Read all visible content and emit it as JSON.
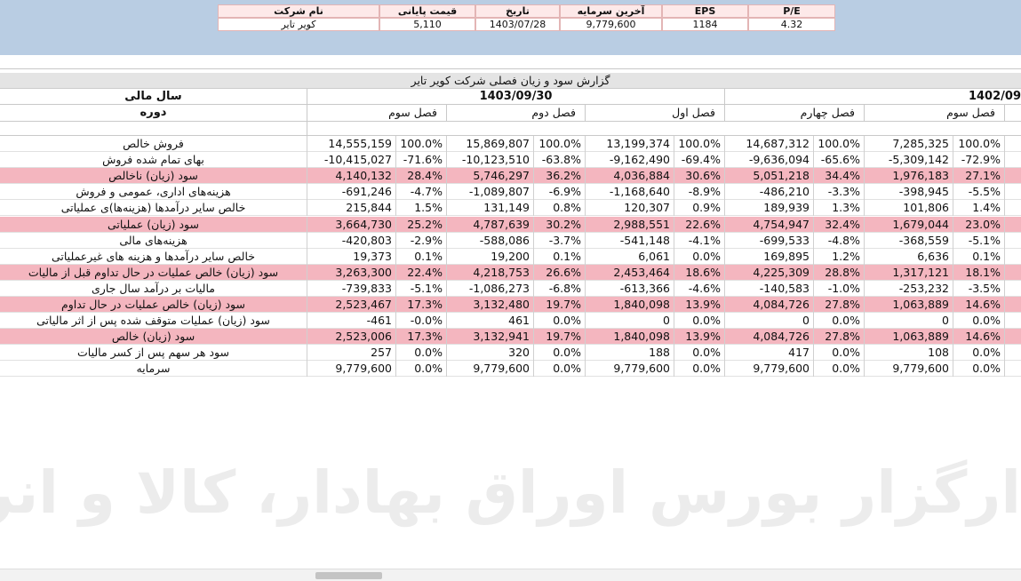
{
  "info": {
    "headers": [
      "نام شرکت",
      "قیمت پایانی",
      "تاریخ",
      "آخرین سرمایه",
      "EPS",
      "P/E"
    ],
    "values": [
      "کویر تایر",
      "5,110",
      "1403/07/28",
      "9,779,600",
      "1184",
      "4.32"
    ]
  },
  "report": {
    "title": "گزارش سود و زیان فصلی شرکت کویر تایر",
    "fiscal_year_label": "سال مالی",
    "period_label": "دوره",
    "years": [
      "1403/09/30",
      "1402/09"
    ],
    "periods": [
      "فصل سوم",
      "فصل دوم",
      "فصل اول",
      "فصل چهارم",
      "فصل سوم"
    ],
    "rows": [
      {
        "label": "فروش خالص",
        "highlight": false,
        "cells": [
          "14,555,159",
          "100.0%",
          "15,869,807",
          "100.0%",
          "13,199,374",
          "100.0%",
          "14,687,312",
          "100.0%",
          "7,285,325",
          "100.0%"
        ]
      },
      {
        "label": "بهای تمام شده فروش",
        "highlight": false,
        "cells": [
          "-10,415,027",
          "-71.6%",
          "-10,123,510",
          "-63.8%",
          "-9,162,490",
          "-69.4%",
          "-9,636,094",
          "-65.6%",
          "-5,309,142",
          "-72.9%"
        ]
      },
      {
        "label": "سود (زیان) ناخالص",
        "highlight": true,
        "cells": [
          "4,140,132",
          "28.4%",
          "5,746,297",
          "36.2%",
          "4,036,884",
          "30.6%",
          "5,051,218",
          "34.4%",
          "1,976,183",
          "27.1%"
        ]
      },
      {
        "label": "هزینه‌های اداری، عمومی و فروش",
        "highlight": false,
        "cells": [
          "-691,246",
          "-4.7%",
          "-1,089,807",
          "-6.9%",
          "-1,168,640",
          "-8.9%",
          "-486,210",
          "-3.3%",
          "-398,945",
          "-5.5%"
        ]
      },
      {
        "label": "خالص سایر درآمدها (هزینه‌ها)ی عملیاتی",
        "highlight": false,
        "cells": [
          "215,844",
          "1.5%",
          "131,149",
          "0.8%",
          "120,307",
          "0.9%",
          "189,939",
          "1.3%",
          "101,806",
          "1.4%"
        ]
      },
      {
        "label": "سود (زیان) عملیاتی",
        "highlight": true,
        "cells": [
          "3,664,730",
          "25.2%",
          "4,787,639",
          "30.2%",
          "2,988,551",
          "22.6%",
          "4,754,947",
          "32.4%",
          "1,679,044",
          "23.0%"
        ]
      },
      {
        "label": "هزینه‌های مالی",
        "highlight": false,
        "cells": [
          "-420,803",
          "-2.9%",
          "-588,086",
          "-3.7%",
          "-541,148",
          "-4.1%",
          "-699,533",
          "-4.8%",
          "-368,559",
          "-5.1%"
        ]
      },
      {
        "label": "خالص سایر درآمدها و هزینه های غیرعملیاتی",
        "highlight": false,
        "cells": [
          "19,373",
          "0.1%",
          "19,200",
          "0.1%",
          "6,061",
          "0.0%",
          "169,895",
          "1.2%",
          "6,636",
          "0.1%"
        ]
      },
      {
        "label": "سود (زیان) خالص عملیات در حال تداوم قبل از مالیات",
        "highlight": true,
        "cells": [
          "3,263,300",
          "22.4%",
          "4,218,753",
          "26.6%",
          "2,453,464",
          "18.6%",
          "4,225,309",
          "28.8%",
          "1,317,121",
          "18.1%"
        ]
      },
      {
        "label": "مالیات بر درآمد سال جاری",
        "highlight": false,
        "cells": [
          "-739,833",
          "-5.1%",
          "-1,086,273",
          "-6.8%",
          "-613,366",
          "-4.6%",
          "-140,583",
          "-1.0%",
          "-253,232",
          "-3.5%"
        ]
      },
      {
        "label": "سود (زیان) خالص عملیات در حال تداوم",
        "highlight": true,
        "cells": [
          "2,523,467",
          "17.3%",
          "3,132,480",
          "19.7%",
          "1,840,098",
          "13.9%",
          "4,084,726",
          "27.8%",
          "1,063,889",
          "14.6%"
        ]
      },
      {
        "label": "سود (زیان) عملیات متوقف شده پس از اثر مالیاتی",
        "highlight": false,
        "cells": [
          "-461",
          "-0.0%",
          "461",
          "0.0%",
          "0",
          "0.0%",
          "0",
          "0.0%",
          "0",
          "0.0%"
        ]
      },
      {
        "label": "سود (زیان) خالص",
        "highlight": true,
        "cells": [
          "2,523,006",
          "17.3%",
          "3,132,941",
          "19.7%",
          "1,840,098",
          "13.9%",
          "4,084,726",
          "27.8%",
          "1,063,889",
          "14.6%"
        ]
      },
      {
        "label": "سود هر سهم پس از کسر مالیات",
        "highlight": false,
        "cells": [
          "257",
          "0.0%",
          "320",
          "0.0%",
          "188",
          "0.0%",
          "417",
          "0.0%",
          "108",
          "0.0%"
        ]
      },
      {
        "label": "سرمایه",
        "highlight": false,
        "cells": [
          "9,779,600",
          "0.0%",
          "9,779,600",
          "0.0%",
          "9,779,600",
          "0.0%",
          "9,779,600",
          "0.0%",
          "9,779,600",
          "0.0%"
        ]
      }
    ]
  },
  "watermark": "ارگزار بورس اوراق بهادار، کالا و انرژی"
}
